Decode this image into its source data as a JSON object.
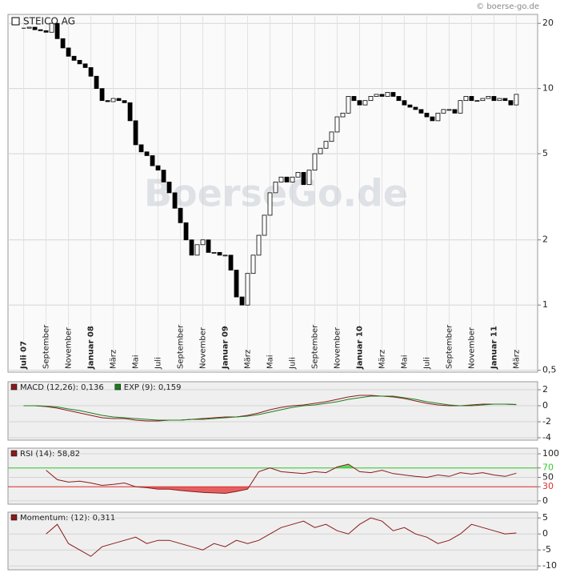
{
  "chart_data": [
    {
      "type": "candlestick",
      "title": "STEICO AG",
      "source": "© boerse-go.de",
      "watermark": "BoerseGo.de",
      "log_scale": true,
      "grid": true,
      "up_color": "#ffffff",
      "down_color": "#000000",
      "xlim": [
        -1.4,
        45.9
      ],
      "ylim": [
        0.49,
        22
      ],
      "yticks": [
        20,
        10,
        5,
        2,
        1,
        {
          "value": 0.5,
          "label": "0,5"
        }
      ],
      "xticks": [
        {
          "value": 0,
          "label": "Juli 07"
        },
        {
          "value": 2,
          "label": "September"
        },
        {
          "value": 4,
          "label": "November"
        },
        {
          "value": 6,
          "label": "Januar 08"
        },
        {
          "value": 8,
          "label": "März"
        },
        {
          "value": 10,
          "label": "Mai"
        },
        {
          "value": 12,
          "label": "Juli"
        },
        {
          "value": 14,
          "label": "September"
        },
        {
          "value": 16,
          "label": "November"
        },
        {
          "value": 18,
          "label": "Januar 09"
        },
        {
          "value": 20,
          "label": "März"
        },
        {
          "value": 22,
          "label": "Mai"
        },
        {
          "value": 24,
          "label": "Juli"
        },
        {
          "value": 26,
          "label": "September"
        },
        {
          "value": 28,
          "label": "November"
        },
        {
          "value": 30,
          "label": "Januar 10"
        },
        {
          "value": 32,
          "label": "März"
        },
        {
          "value": 34,
          "label": "Mai"
        },
        {
          "value": 36,
          "label": "Juli"
        },
        {
          "value": 38,
          "label": "September"
        },
        {
          "value": 40,
          "label": "November"
        },
        {
          "value": 42,
          "label": "Januar 11"
        },
        {
          "value": 44,
          "label": "März"
        }
      ],
      "x": [
        0,
        0.5,
        1,
        1.5,
        2,
        2.5,
        3,
        3.5,
        4,
        4.5,
        5,
        5.5,
        6,
        6.5,
        7,
        7.5,
        8,
        8.5,
        9,
        9.5,
        10,
        10.5,
        11,
        11.5,
        12,
        12.5,
        13,
        13.5,
        14,
        14.5,
        15,
        15.5,
        16,
        16.5,
        17,
        17.5,
        18,
        18.5,
        19,
        19.5,
        20,
        20.5,
        21,
        21.5,
        22,
        22.5,
        23,
        23.5,
        24,
        24.5,
        25,
        25.5,
        26,
        26.5,
        27,
        27.5,
        28,
        28.5,
        29,
        29.5,
        30,
        30.5,
        31,
        31.5,
        32,
        32.5,
        33,
        33.5,
        34,
        34.5,
        35,
        35.5,
        36,
        36.5,
        37,
        37.5,
        38,
        38.5,
        39,
        39.5,
        40,
        40.5,
        41,
        41.5,
        42,
        42.5,
        43,
        43.5,
        44
      ],
      "values": [
        19,
        19.2,
        18.7,
        18.5,
        18.2,
        20,
        17,
        15.4,
        14.1,
        13.5,
        13,
        12.5,
        11.4,
        10,
        8.8,
        8.7,
        9,
        8.8,
        8.6,
        7.1,
        5.5,
        5.1,
        4.9,
        4.4,
        4.2,
        3.7,
        3.3,
        2.8,
        2.4,
        2.0,
        1.7,
        1.9,
        2.0,
        1.75,
        1.75,
        1.7,
        1.7,
        1.45,
        1.09,
        1.0,
        1.4,
        1.7,
        2.1,
        2.6,
        3.3,
        3.7,
        3.9,
        3.7,
        3.9,
        4.1,
        3.6,
        4.2,
        5.0,
        5.3,
        5.7,
        6.3,
        7.4,
        7.7,
        9.2,
        8.8,
        8.4,
        8.8,
        9.2,
        9.4,
        9.2,
        9.6,
        9.2,
        8.8,
        8.4,
        8.2,
        8.0,
        7.7,
        7.4,
        7.1,
        7.7,
        8.0,
        8.0,
        7.7,
        8.8,
        9.2,
        8.8,
        8.8,
        9.0,
        9.2,
        8.8,
        9.0,
        8.8,
        8.4,
        9.4
      ]
    },
    {
      "type": "line",
      "xlim": [
        -1.4,
        45.9
      ],
      "ylim": [
        -4.3,
        3
      ],
      "yticks": [
        2,
        0,
        -2,
        -4
      ],
      "x": [
        0,
        1,
        2,
        3,
        4,
        5,
        6,
        7,
        8,
        9,
        10,
        11,
        12,
        13,
        14,
        15,
        16,
        17,
        18,
        19,
        20,
        21,
        22,
        23,
        24,
        25,
        26,
        27,
        28,
        29,
        30,
        31,
        32,
        33,
        34,
        35,
        36,
        37,
        38,
        39,
        40,
        41,
        42,
        43,
        44
      ],
      "series": [
        {
          "name": "MACD (12,26): 0,136",
          "color": "#8b1a1a",
          "values": [
            0,
            0,
            -0.1,
            -0.3,
            -0.6,
            -0.9,
            -1.2,
            -1.5,
            -1.6,
            -1.6,
            -1.8,
            -1.9,
            -1.9,
            -1.8,
            -1.8,
            -1.7,
            -1.6,
            -1.5,
            -1.4,
            -1.4,
            -1.2,
            -0.9,
            -0.5,
            -0.2,
            0,
            0.1,
            0.3,
            0.5,
            0.8,
            1.1,
            1.3,
            1.3,
            1.2,
            1.1,
            0.9,
            0.6,
            0.3,
            0.1,
            0,
            0,
            0.1,
            0.2,
            0.2,
            0.2,
            0.136
          ]
        },
        {
          "name": "EXP (9): 0,159",
          "color": "#1e7b1e",
          "values": [
            0,
            0,
            -0.05,
            -0.15,
            -0.4,
            -0.6,
            -0.9,
            -1.2,
            -1.4,
            -1.5,
            -1.6,
            -1.7,
            -1.8,
            -1.8,
            -1.8,
            -1.7,
            -1.7,
            -1.6,
            -1.5,
            -1.4,
            -1.3,
            -1.1,
            -0.8,
            -0.5,
            -0.2,
            0,
            0.1,
            0.3,
            0.5,
            0.8,
            1.0,
            1.2,
            1.2,
            1.2,
            1.0,
            0.8,
            0.5,
            0.3,
            0.1,
            0,
            0,
            0.1,
            0.2,
            0.2,
            0.159
          ]
        }
      ]
    },
    {
      "type": "line",
      "xlim": [
        -1.4,
        45.9
      ],
      "ylim": [
        -7,
        112
      ],
      "yticks": [
        100,
        70,
        50,
        30,
        0
      ],
      "upper": 70,
      "lower": 30,
      "upper_color": "#33cc33",
      "lower_color": "#e03030",
      "x": [
        2,
        3,
        4,
        5,
        6,
        7,
        8,
        9,
        10,
        11,
        12,
        13,
        14,
        15,
        16,
        17,
        18,
        19,
        20,
        21,
        22,
        23,
        24,
        25,
        26,
        27,
        28,
        29,
        30,
        31,
        32,
        33,
        34,
        35,
        36,
        37,
        38,
        39,
        40,
        41,
        42,
        43,
        44
      ],
      "series": [
        {
          "name": "RSI (14): 58,82",
          "color": "#8b1a1a",
          "values": [
            65,
            45,
            40,
            42,
            38,
            33,
            35,
            38,
            30,
            28,
            25,
            25,
            22,
            20,
            18,
            17,
            16,
            20,
            25,
            62,
            70,
            62,
            60,
            58,
            62,
            60,
            72,
            78,
            62,
            60,
            65,
            58,
            55,
            52,
            50,
            55,
            52,
            60,
            57,
            60,
            55,
            52,
            58.82
          ]
        }
      ]
    },
    {
      "type": "line",
      "xlim": [
        -1.4,
        45.9
      ],
      "ylim": [
        -11.2,
        6.8
      ],
      "yticks": [
        5,
        0,
        -5,
        -10
      ],
      "x": [
        2,
        3,
        4,
        5,
        6,
        7,
        8,
        9,
        10,
        11,
        12,
        13,
        14,
        15,
        16,
        17,
        18,
        19,
        20,
        21,
        22,
        23,
        24,
        25,
        26,
        27,
        28,
        29,
        30,
        31,
        32,
        33,
        34,
        35,
        36,
        37,
        38,
        39,
        40,
        41,
        42,
        43,
        44
      ],
      "series": [
        {
          "name": "Momentum: (12): 0,311",
          "color": "#8b1a1a",
          "values": [
            0,
            3,
            -3,
            -5,
            -7,
            -4,
            -3,
            -2,
            -1,
            -3,
            -2,
            -2,
            -3,
            -4,
            -5,
            -3,
            -4,
            -2,
            -3,
            -2,
            0,
            2,
            3,
            4,
            2,
            3,
            1,
            0,
            3,
            5,
            4,
            1,
            2,
            0,
            -1,
            -3,
            -2,
            0,
            3,
            2,
            1,
            0,
            0.311
          ]
        }
      ]
    }
  ]
}
